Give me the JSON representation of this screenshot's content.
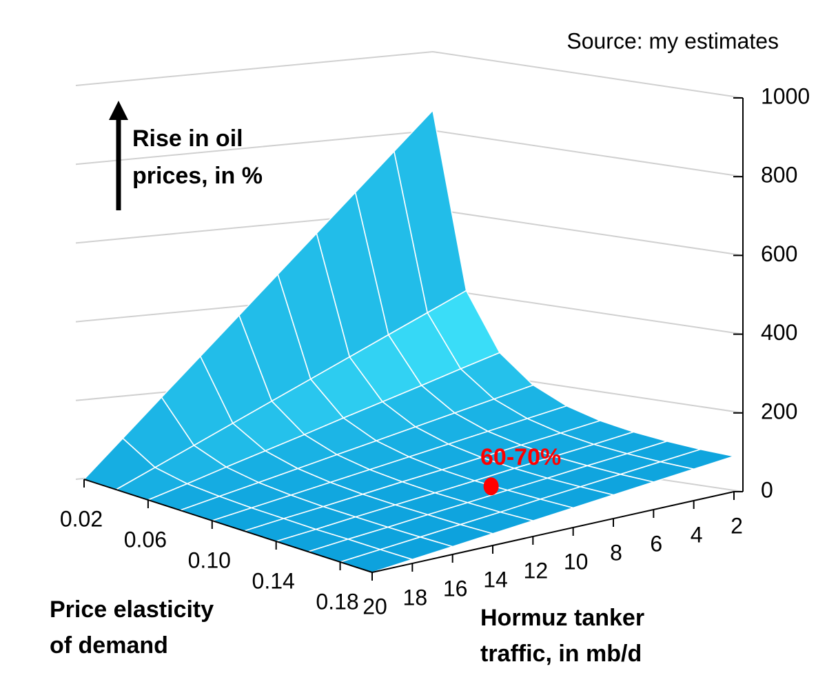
{
  "chart_data": {
    "type": "surface",
    "source": "Source: my estimates",
    "zlabel": [
      "Rise in oil",
      "prices, in %"
    ],
    "xlabel": [
      "Price elasticity",
      "of demand"
    ],
    "ylabel": [
      "Hormuz tanker",
      "traffic, in mb/d"
    ],
    "x": [
      0.02,
      0.04,
      0.06,
      0.08,
      0.1,
      0.12,
      0.14,
      0.16,
      0.18,
      0.2
    ],
    "y": [
      2,
      4,
      6,
      8,
      10,
      12,
      14,
      16,
      18,
      20
    ],
    "z": [
      [
        900,
        800,
        700,
        600,
        500,
        400,
        300,
        200,
        100,
        0
      ],
      [
        450,
        400,
        350,
        300,
        250,
        200,
        150,
        100,
        50,
        0
      ],
      [
        300,
        267,
        233,
        200,
        167,
        133,
        100,
        67,
        33,
        0
      ],
      [
        225,
        200,
        175,
        150,
        125,
        100,
        75,
        50,
        25,
        0
      ],
      [
        180,
        160,
        140,
        120,
        100,
        80,
        60,
        40,
        20,
        0
      ],
      [
        150,
        133,
        117,
        100,
        83,
        67,
        50,
        33,
        17,
        0
      ],
      [
        129,
        114,
        100,
        86,
        71,
        57,
        43,
        29,
        14,
        0
      ],
      [
        113,
        100,
        88,
        75,
        63,
        50,
        38,
        25,
        13,
        0
      ],
      [
        100,
        89,
        78,
        67,
        56,
        44,
        33,
        22,
        11,
        0
      ],
      [
        90,
        80,
        70,
        60,
        50,
        40,
        30,
        20,
        10,
        0
      ]
    ],
    "xlim": [
      0.02,
      0.2
    ],
    "ylim": [
      20,
      2
    ],
    "zlim": [
      0,
      1000
    ],
    "xticks": [
      0.02,
      0.06,
      {
        "value": 0.1,
        "label": "0.10"
      },
      0.14,
      0.18
    ],
    "yticks": [
      20,
      18,
      16,
      14,
      12,
      10,
      8,
      6,
      4,
      2
    ],
    "zticks": [
      0,
      200,
      400,
      600,
      800,
      1000
    ],
    "color_low": "#0a9edb",
    "color_high": "#3fe3fb",
    "grid": true,
    "annotation": {
      "text": "60-70%",
      "x": 0.15,
      "y": 10,
      "z": 65,
      "color": "#ff0000"
    }
  }
}
